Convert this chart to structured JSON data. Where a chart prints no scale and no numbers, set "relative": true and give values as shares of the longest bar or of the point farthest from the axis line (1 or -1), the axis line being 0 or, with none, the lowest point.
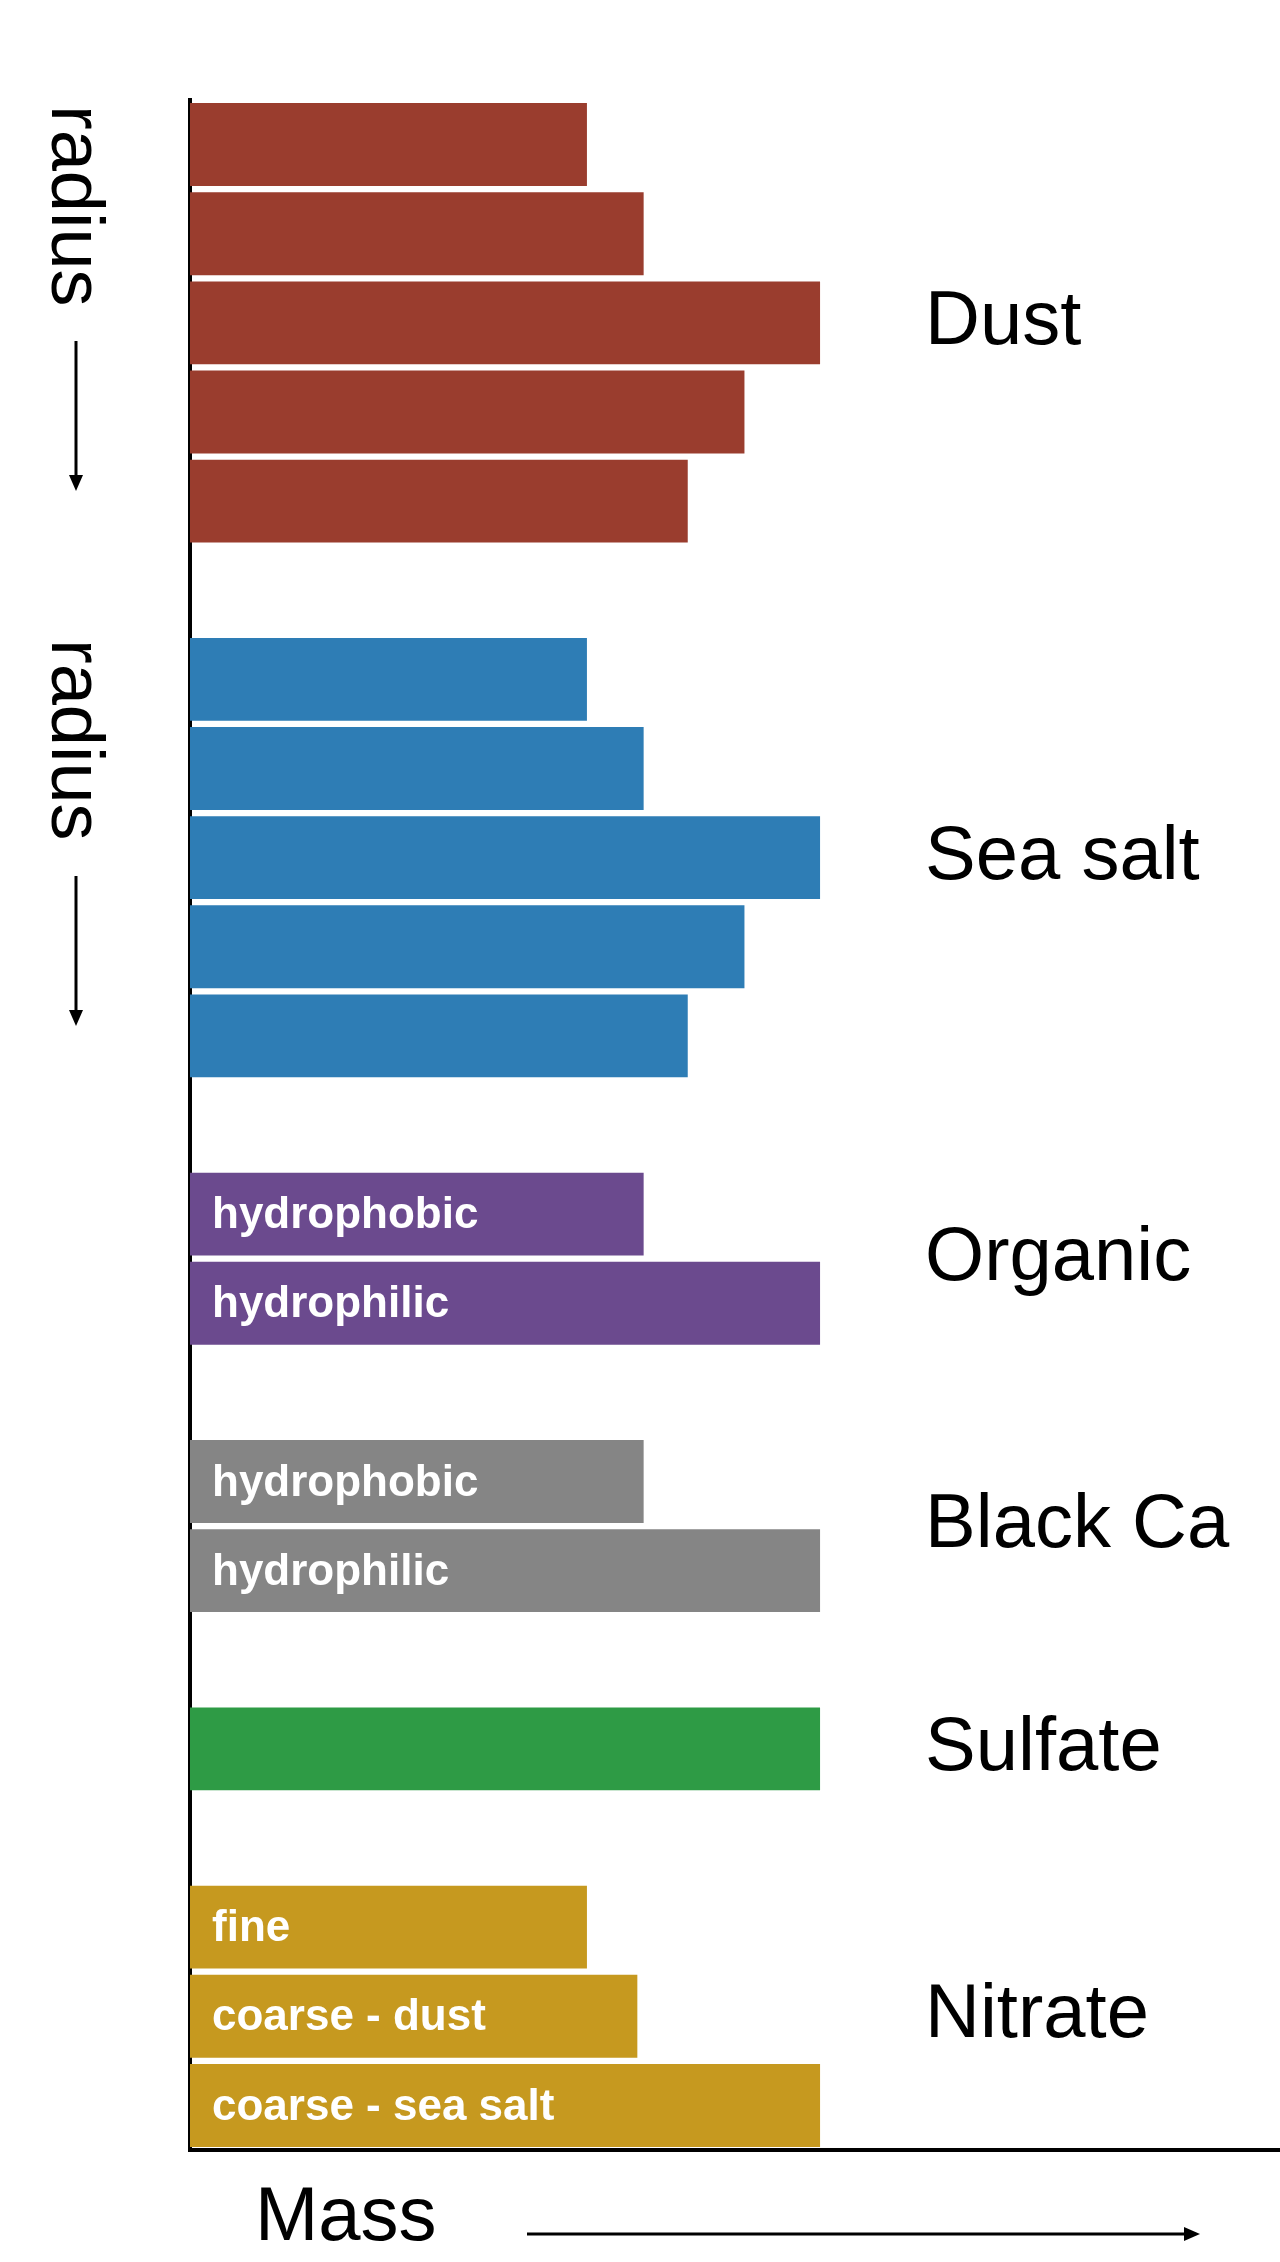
{
  "chart_data": {
    "type": "bar",
    "orientation": "horizontal",
    "relative": true,
    "xlabel": "Mass",
    "tick_labels": false,
    "grid": false,
    "legend": false,
    "annotations": [
      "radius",
      "radius"
    ],
    "categories": [
      null,
      null,
      null,
      null,
      null,
      null,
      null,
      null,
      null,
      null,
      null,
      null,
      "hydrophobic",
      "hydrophilic",
      null,
      "hydrophobic",
      "hydrophilic",
      null,
      null,
      null,
      "fine",
      "coarse - dust",
      "coarse - sea salt"
    ],
    "series": [
      {
        "name": "Dust",
        "color": "#9a3d2e",
        "values": [
          0.63,
          0.72,
          1,
          0.88,
          0.79,
          null,
          null,
          null,
          null,
          null,
          null,
          null,
          null,
          null,
          null,
          null,
          null,
          null,
          null,
          null,
          null,
          null,
          null
        ]
      },
      {
        "name": "Sea salt",
        "color": "#2e7db5",
        "values": [
          null,
          null,
          null,
          null,
          null,
          null,
          0.63,
          0.72,
          1,
          0.88,
          0.79,
          null,
          null,
          null,
          null,
          null,
          null,
          null,
          null,
          null,
          null,
          null,
          null
        ]
      },
      {
        "name": "Organic",
        "color": "#6b4a8e",
        "values": [
          null,
          null,
          null,
          null,
          null,
          null,
          null,
          null,
          null,
          null,
          null,
          null,
          0.72,
          1,
          null,
          null,
          null,
          null,
          null,
          null,
          null,
          null,
          null
        ]
      },
      {
        "name": "Black Ca",
        "color": "#858585",
        "values": [
          null,
          null,
          null,
          null,
          null,
          null,
          null,
          null,
          null,
          null,
          null,
          null,
          null,
          null,
          null,
          0.72,
          1,
          null,
          null,
          null,
          null,
          null,
          null
        ]
      },
      {
        "name": "Sulfate",
        "color": "#2e9b45",
        "values": [
          null,
          null,
          null,
          null,
          null,
          null,
          null,
          null,
          null,
          null,
          null,
          null,
          null,
          null,
          null,
          null,
          null,
          null,
          1,
          null,
          null,
          null,
          null
        ]
      },
      {
        "name": "Nitrate",
        "color": "#c6991f",
        "values": [
          null,
          null,
          null,
          null,
          null,
          null,
          null,
          null,
          null,
          null,
          null,
          null,
          null,
          null,
          null,
          null,
          null,
          null,
          null,
          null,
          0.63,
          0.71,
          1
        ]
      }
    ]
  }
}
